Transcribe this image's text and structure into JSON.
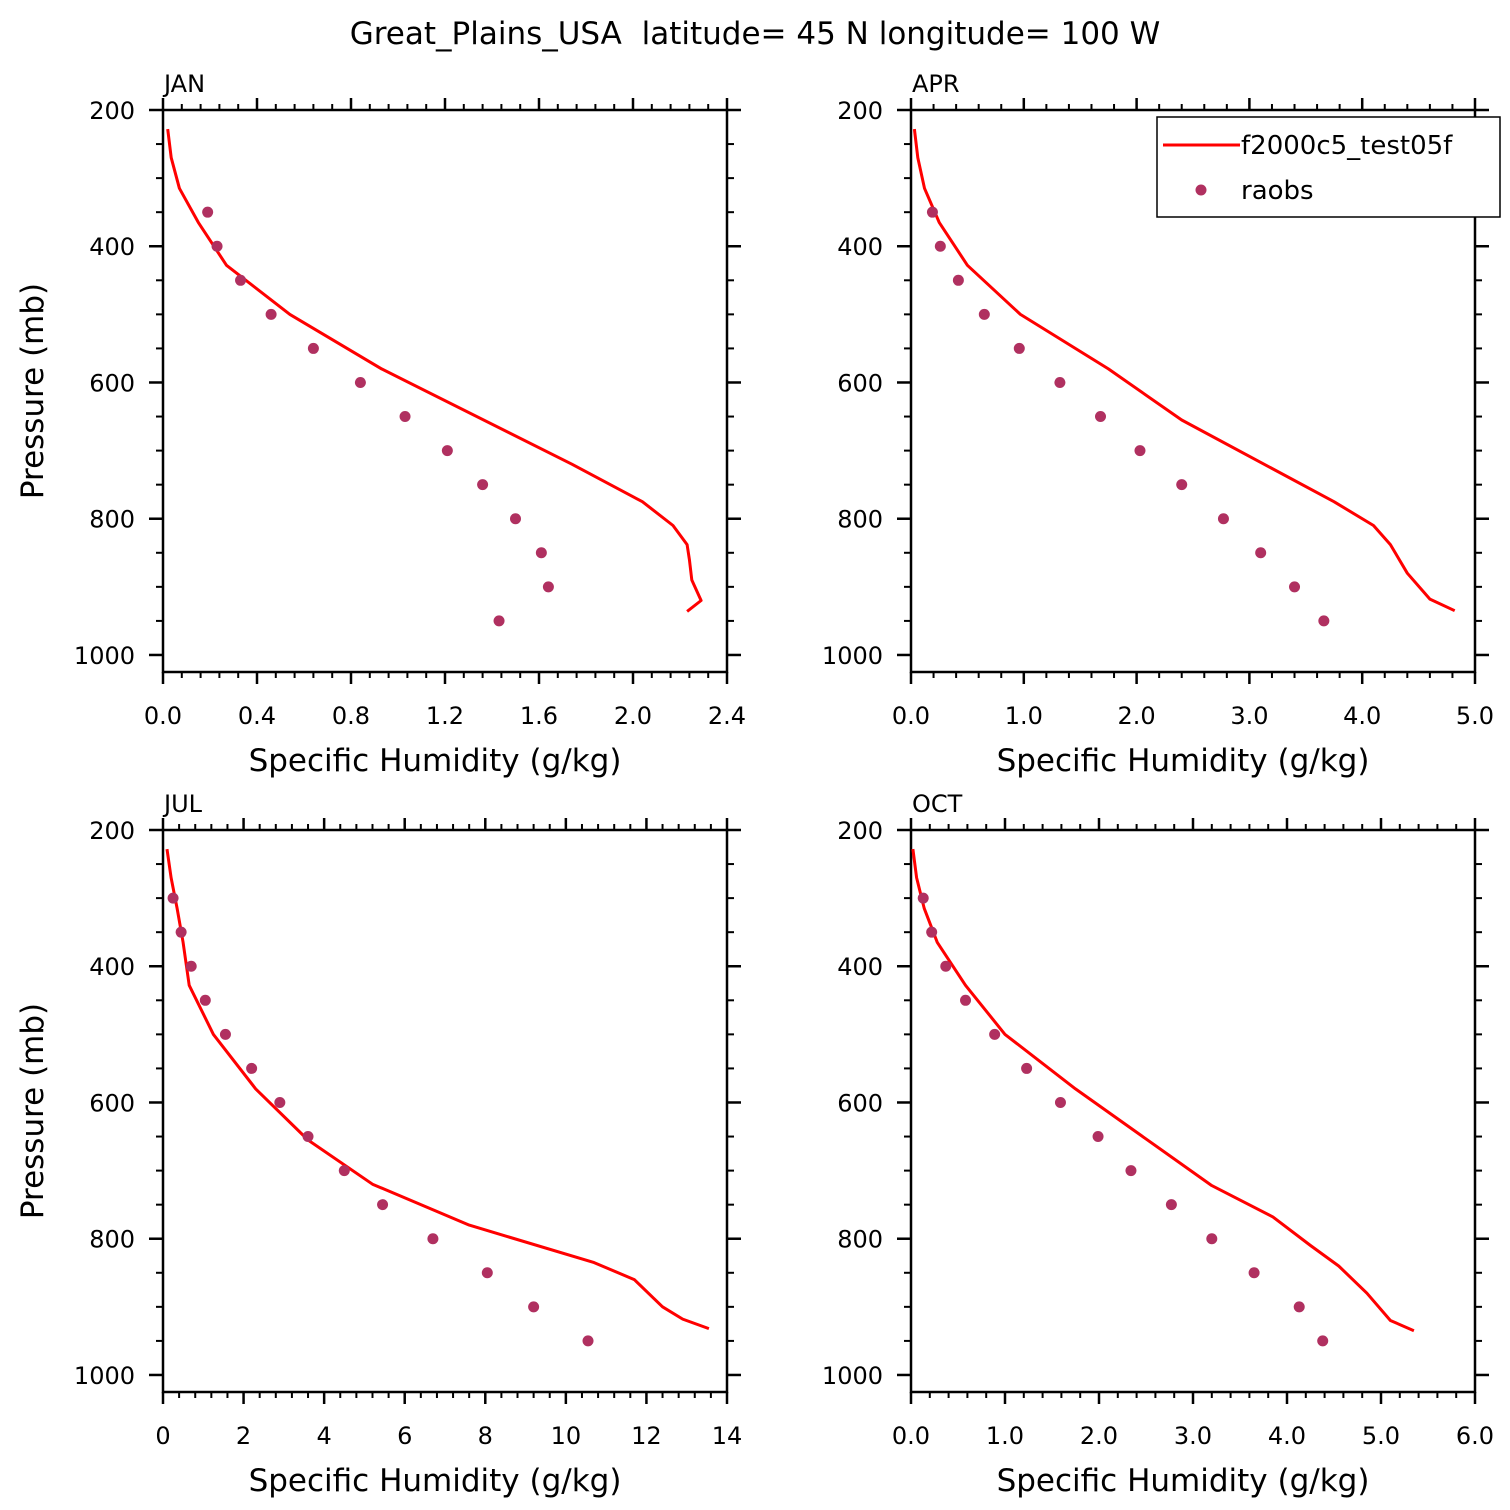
{
  "figure": {
    "title": "Great_Plains_USA  latitude= 45 N longitude= 100 W"
  },
  "colors": {
    "model_line": "#ff0000",
    "obs_dot": "#b03060",
    "axes": "#000000"
  },
  "legend": {
    "placement": "top-right of APR panel",
    "entries": [
      {
        "label": "f2000c5_test05f",
        "symbol": "line",
        "color": "#ff0000"
      },
      {
        "label": "raobs",
        "symbol": "dot",
        "color": "#b03060"
      }
    ]
  },
  "chart_data": [
    {
      "type": "line",
      "panel": "JAN",
      "xlabel": "Specific Humidity (g/kg)",
      "ylabel": "Pressure (mb)",
      "xlim": [
        0,
        2.4
      ],
      "ylim": [
        200,
        1025
      ],
      "y_inverted": true,
      "xticks": [
        0,
        0.4,
        0.8,
        1.2,
        1.6,
        2.0,
        2.4
      ],
      "xtick_labels": [
        "0.0",
        "0.4",
        "0.8",
        "1.2",
        "1.6",
        "2.0",
        "2.4"
      ],
      "yticks": [
        200,
        400,
        600,
        800,
        1000
      ],
      "ytick_labels": [
        "200",
        "400",
        "600",
        "800",
        "1000"
      ],
      "series": [
        {
          "name": "f2000c5_test05f",
          "kind": "line",
          "x": [
            0.02,
            0.035,
            0.07,
            0.15,
            0.27,
            0.54,
            0.93,
            1.74,
            2.04,
            2.17,
            2.23,
            2.24,
            2.25,
            2.29,
            2.23
          ],
          "y": [
            228,
            270,
            315,
            365,
            428,
            500,
            580,
            720,
            775,
            810,
            838,
            860,
            890,
            920,
            936
          ]
        },
        {
          "name": "raobs",
          "kind": "scatter",
          "x": [
            0.19,
            0.23,
            0.33,
            0.46,
            0.64,
            0.84,
            1.03,
            1.21,
            1.36,
            1.5,
            1.61,
            1.64,
            1.43
          ],
          "y": [
            350,
            400,
            450,
            500,
            550,
            600,
            650,
            700,
            750,
            800,
            850,
            900,
            950
          ]
        }
      ]
    },
    {
      "type": "line",
      "panel": "APR",
      "xlabel": "Specific Humidity (g/kg)",
      "ylabel": "",
      "xlim": [
        0,
        5.0
      ],
      "ylim": [
        200,
        1025
      ],
      "y_inverted": true,
      "xticks": [
        0,
        1,
        2,
        3,
        4,
        5
      ],
      "xtick_labels": [
        "0.0",
        "1.0",
        "2.0",
        "3.0",
        "4.0",
        "5.0"
      ],
      "yticks": [
        200,
        400,
        600,
        800,
        1000
      ],
      "ytick_labels": [
        "200",
        "400",
        "600",
        "800",
        "1000"
      ],
      "series": [
        {
          "name": "f2000c5_test05f",
          "kind": "line",
          "x": [
            0.03,
            0.06,
            0.12,
            0.25,
            0.5,
            0.97,
            1.75,
            2.4,
            3.75,
            4.1,
            4.25,
            4.4,
            4.6,
            4.82
          ],
          "y": [
            228,
            270,
            315,
            365,
            428,
            500,
            580,
            655,
            775,
            810,
            838,
            880,
            918,
            935
          ]
        },
        {
          "name": "raobs",
          "kind": "scatter",
          "x": [
            0.19,
            0.26,
            0.42,
            0.65,
            0.96,
            1.32,
            1.68,
            2.03,
            2.4,
            2.77,
            3.1,
            3.4,
            3.66
          ],
          "y": [
            350,
            400,
            450,
            500,
            550,
            600,
            650,
            700,
            750,
            800,
            850,
            900,
            950
          ]
        }
      ]
    },
    {
      "type": "line",
      "panel": "JUL",
      "xlabel": "Specific Humidity (g/kg)",
      "ylabel": "Pressure (mb)",
      "xlim": [
        0,
        14
      ],
      "ylim": [
        200,
        1025
      ],
      "y_inverted": true,
      "xticks": [
        0,
        2,
        4,
        6,
        8,
        10,
        12,
        14
      ],
      "xtick_labels": [
        "0",
        "2",
        "4",
        "6",
        "8",
        "10",
        "12",
        "14"
      ],
      "yticks": [
        200,
        400,
        600,
        800,
        1000
      ],
      "ytick_labels": [
        "200",
        "400",
        "600",
        "800",
        "1000"
      ],
      "series": [
        {
          "name": "f2000c5_test05f",
          "kind": "line",
          "x": [
            0.1,
            0.2,
            0.35,
            0.5,
            0.65,
            1.25,
            2.3,
            3.6,
            5.2,
            7.6,
            10.7,
            11.7,
            12.4,
            12.9,
            13.55
          ],
          "y": [
            228,
            270,
            315,
            365,
            428,
            500,
            580,
            655,
            720,
            780,
            835,
            860,
            900,
            918,
            932
          ]
        },
        {
          "name": "raobs",
          "kind": "scatter",
          "x": [
            0.25,
            0.45,
            0.7,
            1.05,
            1.55,
            2.2,
            2.9,
            3.6,
            4.5,
            5.45,
            6.7,
            8.05,
            9.2,
            10.55
          ],
          "y": [
            300,
            350,
            400,
            450,
            500,
            550,
            600,
            650,
            700,
            750,
            800,
            850,
            900,
            950
          ]
        }
      ]
    },
    {
      "type": "line",
      "panel": "OCT",
      "xlabel": "Specific Humidity (g/kg)",
      "ylabel": "",
      "xlim": [
        0,
        6.0
      ],
      "ylim": [
        200,
        1025
      ],
      "y_inverted": true,
      "xticks": [
        0,
        1,
        2,
        3,
        4,
        5,
        6
      ],
      "xtick_labels": [
        "0.0",
        "1.0",
        "2.0",
        "3.0",
        "4.0",
        "5.0",
        "6.0"
      ],
      "yticks": [
        200,
        400,
        600,
        800,
        1000
      ],
      "ytick_labels": [
        "200",
        "400",
        "600",
        "800",
        "1000"
      ],
      "series": [
        {
          "name": "f2000c5_test05f",
          "kind": "line",
          "x": [
            0.02,
            0.06,
            0.14,
            0.28,
            0.58,
            1.0,
            1.75,
            3.2,
            3.85,
            4.25,
            4.55,
            4.85,
            5.1,
            5.35
          ],
          "y": [
            228,
            270,
            315,
            365,
            428,
            500,
            580,
            722,
            768,
            810,
            840,
            880,
            920,
            935
          ]
        },
        {
          "name": "raobs",
          "kind": "scatter",
          "x": [
            0.13,
            0.22,
            0.37,
            0.58,
            0.89,
            1.23,
            1.59,
            1.99,
            2.34,
            2.77,
            3.2,
            3.65,
            4.13,
            4.38
          ],
          "y": [
            300,
            350,
            400,
            450,
            500,
            550,
            600,
            650,
            700,
            750,
            800,
            850,
            900,
            950
          ]
        }
      ]
    }
  ]
}
